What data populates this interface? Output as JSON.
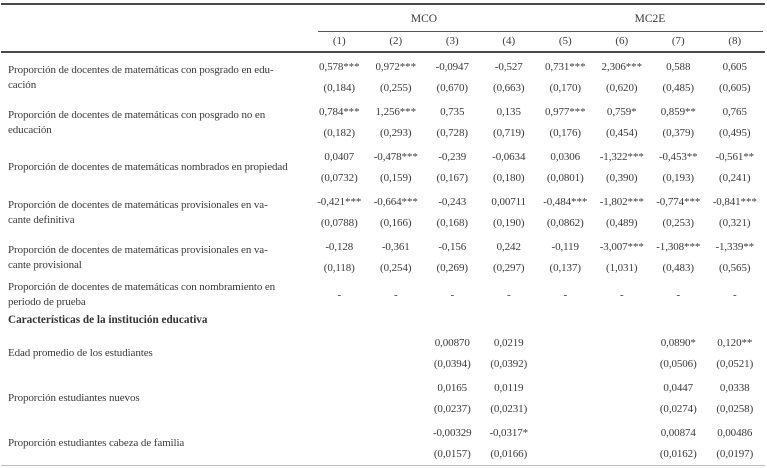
{
  "table": {
    "column_groups": [
      {
        "label": "MCO",
        "span": 4
      },
      {
        "label": "MC2E",
        "span": 4
      }
    ],
    "column_numbers": [
      "(1)",
      "(2)",
      "(3)",
      "(4)",
      "(5)",
      "(6)",
      "(7)",
      "(8)"
    ],
    "rows": [
      {
        "type": "variable",
        "label": "Proporción de docentes de matemáticas con posgrado en edu-\ncación",
        "coefficients": [
          "0,578***",
          "0,972***",
          "-0,0947",
          "-0,527",
          "0,731***",
          "2,306***",
          "0,588",
          "0,605"
        ],
        "std_errors": [
          "(0,184)",
          "(0,255)",
          "(0,670)",
          "(0,663)",
          "(0,170)",
          "(0,620)",
          "(0,485)",
          "(0,605)"
        ]
      },
      {
        "type": "variable",
        "label": "Proporción de docentes de matemáticas con posgrado no en\neducación",
        "coefficients": [
          "0,784***",
          "1,256***",
          "0,735",
          "0,135",
          "0,977***",
          "0,759*",
          "0,859**",
          "0,765"
        ],
        "std_errors": [
          "(0,182)",
          "(0,293)",
          "(0,728)",
          "(0,719)",
          "(0,176)",
          "(0,454)",
          "(0,379)",
          "(0,495)"
        ]
      },
      {
        "type": "variable",
        "label": "Proporción de docentes de matemáticas nombrados en propiedad",
        "coefficients": [
          "0,0407",
          "-0,478***",
          "-0,239",
          "-0,0634",
          "0,0306",
          "-1,322***",
          "-0,453**",
          "-0,561**"
        ],
        "std_errors": [
          "(0,0732)",
          "(0,159)",
          "(0,167)",
          "(0,180)",
          "(0,0801)",
          "(0,390)",
          "(0,193)",
          "(0,241)"
        ]
      },
      {
        "type": "variable",
        "label": "Proporción de docentes de matemáticas provisionales en va-\ncante definitiva",
        "coefficients": [
          "-0,421***",
          "-0,664***",
          "-0,243",
          "0,00711",
          "-0,484***",
          "-1,802***",
          "-0,774***",
          "-0,841***"
        ],
        "std_errors": [
          "(0,0788)",
          "(0,166)",
          "(0,168)",
          "(0,190)",
          "(0,0862)",
          "(0,489)",
          "(0,253)",
          "(0,321)"
        ]
      },
      {
        "type": "variable",
        "label": "Proporción de docentes de matemáticas provisionales en va-\ncante provisional",
        "coefficients": [
          "-0,128",
          "-0,361",
          "-0,156",
          "0,242",
          "-0,119",
          "-3,007***",
          "-1,308***",
          "-1,339**"
        ],
        "std_errors": [
          "(0,118)",
          "(0,254)",
          "(0,269)",
          "(0,297)",
          "(0,137)",
          "(1,031)",
          "(0,483)",
          "(0,565)"
        ]
      },
      {
        "type": "dashes",
        "label": "Proporción de docentes de matemáticas con nombramiento en\nperiodo de prueba",
        "coefficients": [
          "-",
          "-",
          "-",
          "-",
          "-",
          "-",
          "-",
          "-"
        ],
        "std_errors": null
      },
      {
        "type": "section",
        "label": "Características de la institución educativa"
      },
      {
        "type": "variable",
        "label": "Edad promedio de los estudiantes",
        "coefficients": [
          "",
          "",
          "0,00870",
          "0,0219",
          "",
          "",
          "0,0890*",
          "0,120**"
        ],
        "std_errors": [
          "",
          "",
          "(0,0394)",
          "(0,0392)",
          "",
          "",
          "(0,0506)",
          "(0,0521)"
        ]
      },
      {
        "type": "variable",
        "label": "Proporción estudiantes nuevos",
        "coefficients": [
          "",
          "",
          "0,0165",
          "0,0119",
          "",
          "",
          "0,0447",
          "0,0338"
        ],
        "std_errors": [
          "",
          "",
          "(0,0237)",
          "(0,0231)",
          "",
          "",
          "(0,0274)",
          "(0,0258)"
        ]
      },
      {
        "type": "variable",
        "label": "Proporción estudiantes cabeza de familia",
        "coefficients": [
          "",
          "",
          "-0,00329",
          "-0,0317*",
          "",
          "",
          "0,00874",
          "0,00486"
        ],
        "std_errors": [
          "",
          "",
          "(0,0157)",
          "(0,0166)",
          "",
          "",
          "(0,0162)",
          "(0,0197)"
        ]
      }
    ]
  },
  "colors": {
    "text": "#3a3a3a",
    "rule_dark": "#4a4a4a",
    "rule_light": "#bcbcbc",
    "background": "#ffffff"
  }
}
